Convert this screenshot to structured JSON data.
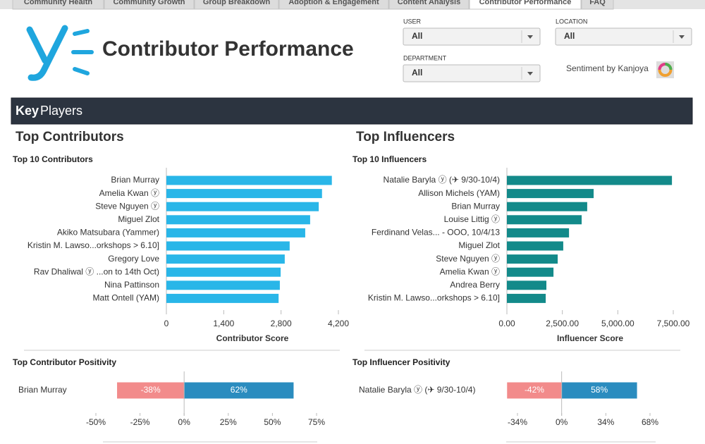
{
  "tabs": [
    "Community Health",
    "Community Growth",
    "Group Breakdown",
    "Adoption & Engagement",
    "Content Analysis",
    "Contributor Performance",
    "FAQ"
  ],
  "header": {
    "title": "Contributor Performance"
  },
  "filters": [
    {
      "label": "USER",
      "value": "All"
    },
    {
      "label": "LOCATION",
      "value": "All"
    },
    {
      "label": "DEPARTMENT",
      "value": "All"
    }
  ],
  "sentiment": "Sentiment by Kanjoya",
  "section": {
    "bold": "Key",
    "rest": "Players"
  },
  "headings": [
    "Top Contributors",
    "Top Influencers"
  ],
  "chart_data": [
    {
      "type": "hbar",
      "title": "Top 10 Contributors",
      "categories": [
        "Brian Murray",
        "Amelia Kwan ⓨ",
        "Steve Nguyen ⓨ",
        "Miguel Zlot",
        "Akiko Matsubara (Yammer)",
        "Kristin M. Lawso...orkshops > 6.10]",
        "Gregory Love",
        "Rav Dhaliwal ⓨ ...on to 14th Oct)",
        "Nina Pattinson",
        "Matt Ontell (YAM)"
      ],
      "values": [
        4040,
        3800,
        3720,
        3510,
        3390,
        3010,
        2890,
        2790,
        2770,
        2740
      ],
      "color": "#29b6e8",
      "xlim": [
        0,
        4200
      ],
      "xticks": [
        0,
        {
          "value": 1400,
          "label": "1,400"
        },
        {
          "value": 2800,
          "label": "2,800"
        },
        {
          "value": 4200,
          "label": "4,200"
        }
      ],
      "xlabel": "Contributor Score"
    },
    {
      "type": "hbar",
      "title": "Top 10 Influencers",
      "categories": [
        "Natalie Baryla ⓨ (✈ 9/30-10/4)",
        "Allison Michels (YAM)",
        "Brian Murray",
        "Louise Littig ⓨ",
        "Ferdinand Velas... - OOO, 10/4/13",
        "Miguel Zlot",
        "Steve Nguyen ⓨ",
        "Amelia Kwan ⓨ",
        "Andrea Berry",
        "Kristin M. Lawso...orkshops > 6.10]"
      ],
      "values": [
        7440,
        3910,
        3620,
        3370,
        2800,
        2540,
        2290,
        2100,
        1780,
        1750
      ],
      "color": "#138a8a",
      "xlim": [
        0,
        7500
      ],
      "xticks": [
        {
          "value": 0,
          "label": "0.00"
        },
        {
          "value": 2500,
          "label": "2,500.00"
        },
        {
          "value": 5000,
          "label": "5,000.00"
        },
        {
          "value": 7500,
          "label": "7,500.00"
        }
      ],
      "xlabel": "Influencer Score"
    },
    {
      "type": "diverging",
      "title": "Top Contributor Positivity",
      "categories": [
        "Brian Murray"
      ],
      "series": [
        {
          "color": "#f28b8b",
          "values": [
            -38
          ],
          "value_labels": [
            "-38%"
          ]
        },
        {
          "color": "#2a8cbf",
          "values": [
            62
          ],
          "value_labels": [
            "62%"
          ]
        }
      ],
      "xlim": [
        -50,
        75
      ],
      "xticks": [
        {
          "value": -50,
          "label": "-50%"
        },
        {
          "value": -25,
          "label": "-25%"
        },
        {
          "value": 0,
          "label": "0%"
        },
        {
          "value": 25,
          "label": "25%"
        },
        {
          "value": 50,
          "label": "50%"
        },
        {
          "value": 75,
          "label": "75%"
        }
      ]
    },
    {
      "type": "diverging",
      "title": "Top Influencer Positivity",
      "categories": [
        "Natalie Baryla ⓨ (✈ 9/30-10/4)"
      ],
      "series": [
        {
          "color": "#f28b8b",
          "values": [
            -42
          ],
          "value_labels": [
            "-42%"
          ]
        },
        {
          "color": "#2a8cbf",
          "values": [
            58
          ],
          "value_labels": [
            "58%"
          ]
        }
      ],
      "xlim": [
        -34,
        68
      ],
      "xticks": [
        {
          "value": -34,
          "label": "-34%"
        },
        {
          "value": 0,
          "label": "0%"
        },
        {
          "value": 34,
          "label": "34%"
        },
        {
          "value": 68,
          "label": "68%"
        }
      ]
    }
  ]
}
